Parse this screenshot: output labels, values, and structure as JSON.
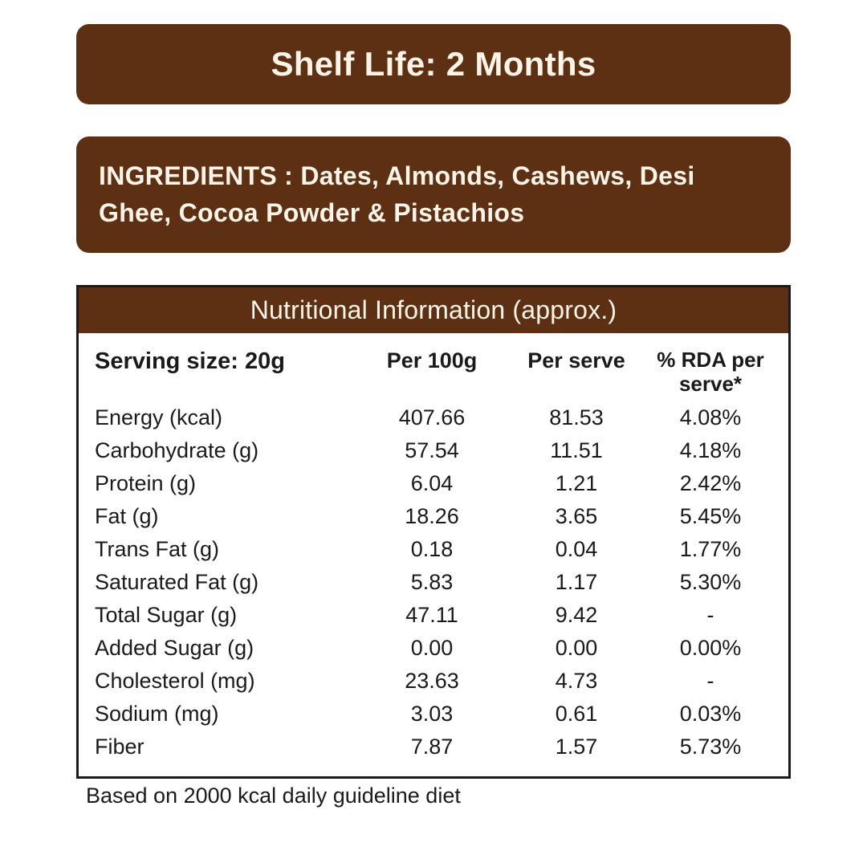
{
  "colors": {
    "banner_bg": "#5d2f13",
    "banner_text": "#fef5e8",
    "body_bg": "#ffffff",
    "text": "#1a1a1a",
    "border": "#1a1a1a"
  },
  "shelf_life": "Shelf Life: 2 Months",
  "ingredients": "INGREDIENTS : Dates, Almonds, Cashews, Desi Ghee, Cocoa Powder & Pistachios",
  "table": {
    "title": "Nutritional Information (approx.)",
    "columns": {
      "serving": "Serving size: 20g",
      "per_100g": "Per 100g",
      "per_serve": "Per serve",
      "rda": "% RDA per serve*"
    },
    "rows": [
      {
        "label": "Energy (kcal)",
        "per100g": "407.66",
        "perServe": "81.53",
        "rda": "4.08%"
      },
      {
        "label": "Carbohydrate (g)",
        "per100g": "57.54",
        "perServe": "11.51",
        "rda": "4.18%"
      },
      {
        "label": "Protein (g)",
        "per100g": "6.04",
        "perServe": "1.21",
        "rda": "2.42%"
      },
      {
        "label": "Fat (g)",
        "per100g": "18.26",
        "perServe": "3.65",
        "rda": "5.45%"
      },
      {
        "label": "Trans Fat (g)",
        "per100g": "0.18",
        "perServe": "0.04",
        "rda": "1.77%"
      },
      {
        "label": "Saturated Fat (g)",
        "per100g": "5.83",
        "perServe": "1.17",
        "rda": "5.30%"
      },
      {
        "label": "Total Sugar (g)",
        "per100g": "47.11",
        "perServe": "9.42",
        "rda": "-"
      },
      {
        "label": "Added Sugar (g)",
        "per100g": "0.00",
        "perServe": "0.00",
        "rda": "0.00%"
      },
      {
        "label": "Cholesterol (mg)",
        "per100g": "23.63",
        "perServe": "4.73",
        "rda": "-"
      },
      {
        "label": "Sodium (mg)",
        "per100g": "3.03",
        "perServe": "0.61",
        "rda": "0.03%"
      },
      {
        "label": "Fiber",
        "per100g": "7.87",
        "perServe": "1.57",
        "rda": "5.73%"
      }
    ],
    "footnote": "Based on 2000 kcal daily guideline diet"
  }
}
